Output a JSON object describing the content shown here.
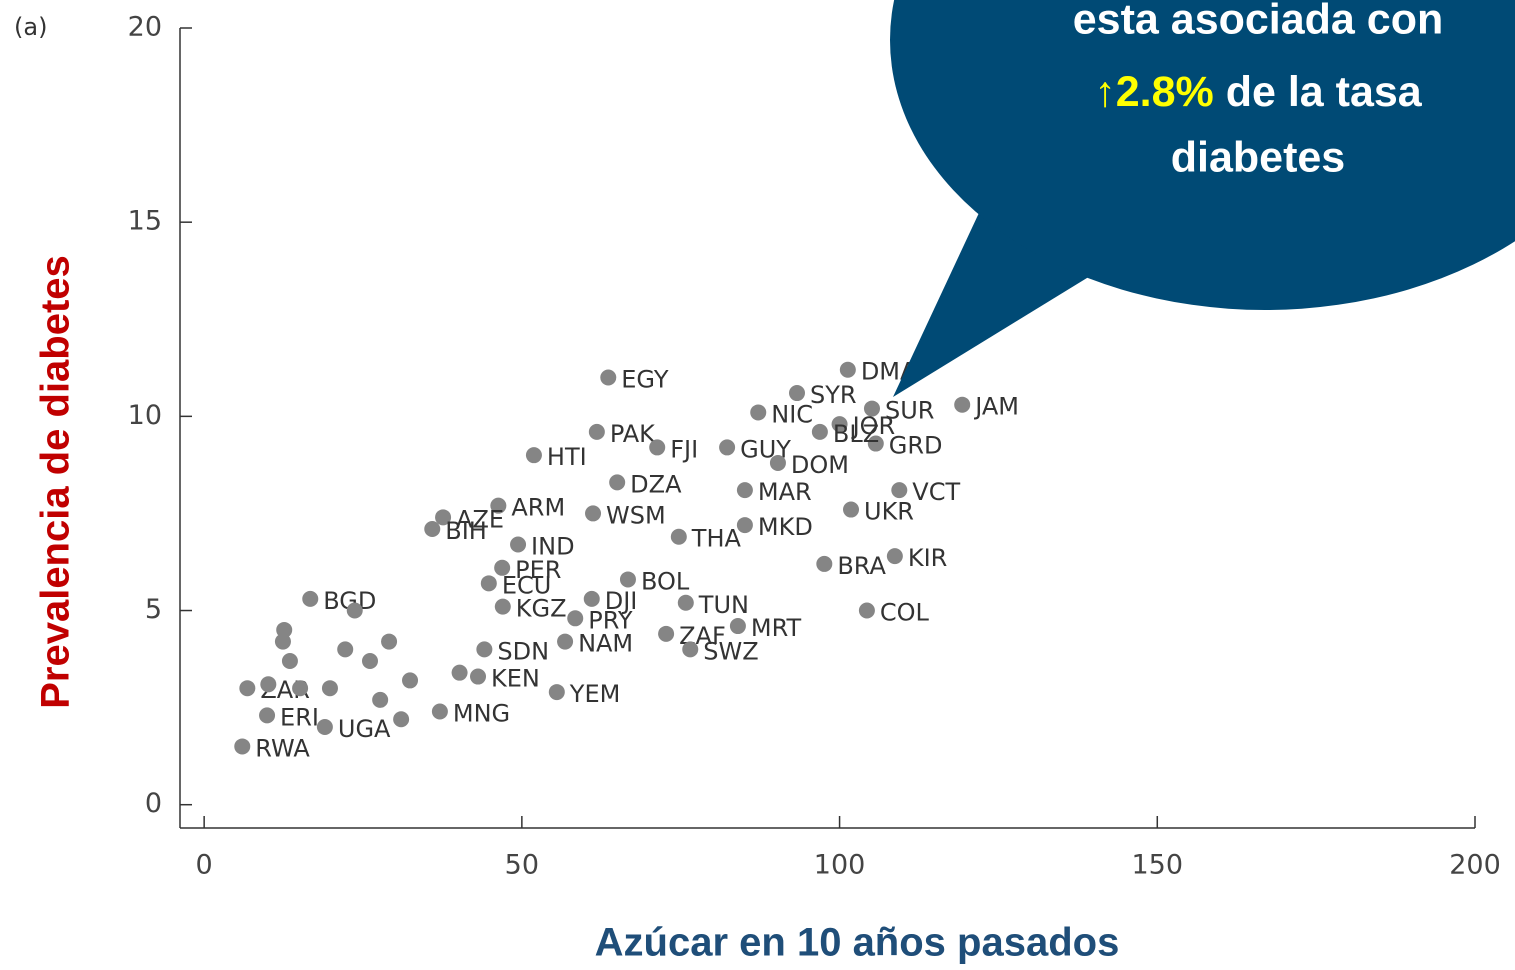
{
  "chart_data": {
    "type": "scatter",
    "panel_label": "(a)",
    "x_label": "Azúcar en 10 años pasados",
    "y_label": "Prevalencia de diabetes",
    "annotation": {
      "line1": "esta asociada con",
      "highlight": "↑2.8%",
      "line2_rest": " de la tasa",
      "line3": "diabetes"
    },
    "color": "#858585",
    "xlim": [
      -3.8,
      200
    ],
    "ylim": [
      -0.6,
      20
    ],
    "xticks": [
      0,
      50,
      100,
      150,
      200
    ],
    "yticks": [
      0,
      5,
      10,
      15,
      20
    ],
    "labels": [
      "EGY",
      "DMA",
      "SYR",
      "NIC",
      "SUR",
      "JAM",
      "PAK",
      "FJI",
      "HTI",
      "GUY",
      "DOM",
      "JOR",
      "GRD",
      "BLZ",
      "DZA",
      "MAR",
      "VCT",
      "UKR",
      "ARM",
      "AZE",
      "BIH",
      "WSM",
      "THA",
      "MKD",
      "IND",
      "BRA",
      "KIR",
      "PER",
      "ECU",
      "BOL",
      "TUN",
      "COL",
      "DJI",
      "KGZ",
      "PRY",
      "MRT",
      "ZAF",
      "NAM",
      "SWZ",
      "SDN",
      "KEN",
      "YEM",
      "BGD",
      "RWA",
      "ZAR",
      "ERI",
      "UGA",
      "MNG",
      null,
      null,
      null,
      null,
      null,
      null,
      null,
      null,
      null,
      null,
      null,
      null,
      null,
      null
    ],
    "x": [
      63.6,
      101.3,
      93.3,
      87.2,
      105.1,
      119.3,
      61.8,
      71.3,
      51.9,
      82.3,
      90.3,
      100,
      105.7,
      96.9,
      65,
      85.1,
      109.4,
      101.8,
      46.3,
      37.6,
      35.9,
      61.2,
      74.7,
      85.1,
      49.4,
      97.6,
      108.7,
      46.9,
      44.8,
      66.7,
      75.8,
      104.3,
      61,
      47,
      58.4,
      84,
      72.7,
      56.8,
      76.5,
      44.1,
      43.1,
      55.5,
      16.7,
      6,
      6.8,
      9.9,
      19,
      37.1,
      12.4,
      13.5,
      15.1,
      19.8,
      22.2,
      26.1,
      27.7,
      31,
      12.6,
      10.1,
      23.7,
      29.1,
      32.4,
      40.2
    ],
    "values": [
      11.0,
      11.2,
      10.6,
      10.1,
      10.2,
      10.3,
      9.6,
      9.2,
      9.0,
      9.2,
      8.8,
      9.8,
      9.3,
      9.6,
      8.3,
      8.1,
      8.1,
      7.6,
      7.7,
      7.4,
      7.1,
      7.5,
      6.9,
      7.2,
      6.7,
      6.2,
      6.4,
      6.1,
      5.7,
      5.8,
      5.2,
      5.0,
      5.3,
      5.1,
      4.8,
      4.6,
      4.4,
      4.2,
      4.0,
      4.0,
      3.3,
      2.9,
      5.3,
      1.5,
      3.0,
      2.3,
      2.0,
      2.4,
      4.2,
      3.7,
      3.0,
      3.0,
      4.0,
      3.7,
      2.7,
      2.2,
      4.5,
      3.1,
      5.0,
      4.2,
      3.2,
      3.4
    ]
  }
}
